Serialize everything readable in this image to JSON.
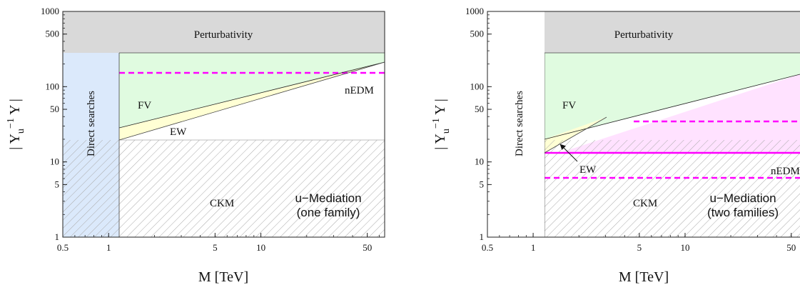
{
  "chart_data": [
    {
      "type": "area",
      "title": "u−Mediation",
      "subtitle": "(one family)",
      "xlabel": "M [TeV]",
      "ylabel": "|Y_u^−1 Y|",
      "xscale": "log",
      "yscale": "log",
      "xlim": [
        0.5,
        65
      ],
      "ylim": [
        1,
        1000
      ],
      "x_ticks": [
        0.5,
        1,
        5,
        10,
        50
      ],
      "y_ticks": [
        1,
        5,
        10,
        50,
        100,
        500,
        1000
      ],
      "regions": [
        {
          "name": "Perturbativity",
          "color": "#d9d9d9",
          "y_min": 300,
          "y_max": 1000,
          "x_min": 0.5,
          "x_max": 65
        },
        {
          "name": "Direct searches",
          "color": "#dbe9fb",
          "x_min": 0.5,
          "x_max": 1.25,
          "y_min": 1,
          "y_max": 300
        },
        {
          "name": "CKM",
          "hatched": true,
          "y_min": 1,
          "y_max": 19.5,
          "x_min": 0.5,
          "x_max": 65
        },
        {
          "name": "FV",
          "color": "#e0fbe0",
          "lower_boundary": [
            [
              1.25,
              28
            ],
            [
              65,
              220
            ]
          ],
          "upper": 300
        },
        {
          "name": "EW",
          "color": "#ffffd4",
          "lower_boundary": [
            [
              1.25,
              19.5
            ],
            [
              65,
              220
            ]
          ],
          "upper_boundary": [
            [
              1.25,
              28
            ],
            [
              65,
              220
            ]
          ]
        }
      ],
      "lines": [
        {
          "name": "nEDM",
          "style": "dashed",
          "color": "#ff00ff",
          "y": 165,
          "x_min": 1.25,
          "x_max": 65
        }
      ],
      "annotations": [
        "Perturbativity",
        "Direct searches",
        "FV",
        "EW",
        "nEDM",
        "CKM"
      ]
    },
    {
      "type": "area",
      "title": "u−Mediation",
      "subtitle": "(two families)",
      "xlabel": "M [TeV]",
      "ylabel": "|Y_u^−1 Y|",
      "xscale": "log",
      "yscale": "log",
      "xlim": [
        0.5,
        65
      ],
      "ylim": [
        1,
        1000
      ],
      "x_ticks": [
        0.5,
        1,
        5,
        10,
        50
      ],
      "y_ticks": [
        1,
        5,
        10,
        50,
        100,
        500,
        1000
      ],
      "regions": [
        {
          "name": "Perturbativity",
          "color": "#d9d9d9",
          "y_min": 300,
          "y_max": 1000,
          "x_min": 0.5,
          "x_max": 65
        },
        {
          "name": "Direct searches",
          "color": "#dbe9fb",
          "x_min": 0.5,
          "x_max": 1.25,
          "y_min": 1,
          "y_max": 300
        },
        {
          "name": "CKM",
          "hatched": true,
          "y_min": 1,
          "y_max": 19.5,
          "x_min": 0.5,
          "x_max": 65
        },
        {
          "name": "FV",
          "color": "#e0fbe0",
          "lower_boundary": [
            [
              1.25,
              20
            ],
            [
              65,
              145
            ]
          ],
          "upper": 300
        },
        {
          "name": "EW",
          "color": "#ffffd4",
          "lower_boundary": [
            [
              1.25,
              13.5
            ],
            [
              2,
              19.5
            ]
          ],
          "upper_boundary": [
            [
              1.25,
              20
            ],
            [
              3,
              35
            ]
          ]
        },
        {
          "name": "nEDM",
          "color": "#ffe2ff",
          "lower_boundary": [
            [
              1.6,
              13.5
            ],
            [
              65,
              13.5
            ]
          ],
          "upper_boundary": [
            [
              1.6,
              22
            ],
            [
              65,
              145
            ]
          ]
        }
      ],
      "lines": [
        {
          "name": "nEDM",
          "style": "solid",
          "color": "#ff00ff",
          "y": 13.5,
          "x_min": 1.25,
          "x_max": 65
        },
        {
          "name": "nEDM upper",
          "style": "dashed",
          "color": "#ff00ff",
          "y": 34,
          "x_min": 4.7,
          "x_max": 65
        },
        {
          "name": "nEDM lower",
          "style": "dashed",
          "color": "#ff00ff",
          "y": 6.3,
          "x_min": 1.25,
          "x_max": 65
        }
      ],
      "annotations": [
        "Perturbativity",
        "Direct searches",
        "FV",
        "EW",
        "nEDM",
        "CKM"
      ]
    }
  ],
  "labels": {
    "perturbativity": "Perturbativity",
    "direct_searches": "Direct searches",
    "fv": "FV",
    "ew": "EW",
    "nedm": "nEDM",
    "nedm_cut": "nEDM",
    "ckm": "CKM",
    "title": "u−Mediation",
    "sub_left": "(one family)",
    "sub_right": "(two families)",
    "xlabel": "M [TeV]"
  }
}
